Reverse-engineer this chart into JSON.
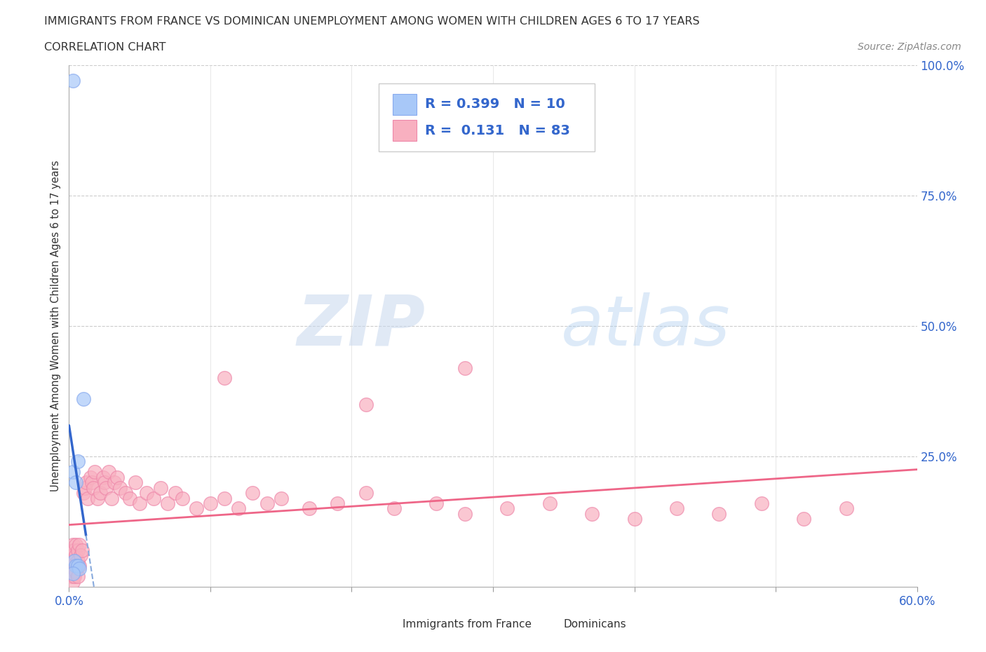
{
  "title": "IMMIGRANTS FROM FRANCE VS DOMINICAN UNEMPLOYMENT AMONG WOMEN WITH CHILDREN AGES 6 TO 17 YEARS",
  "subtitle": "CORRELATION CHART",
  "source": "Source: ZipAtlas.com",
  "ylabel": "Unemployment Among Women with Children Ages 6 to 17 years",
  "xlim": [
    0.0,
    0.6
  ],
  "ylim": [
    0.0,
    1.0
  ],
  "france_color": "#a8c8f8",
  "france_edge_color": "#88aaee",
  "dominican_color": "#f8b0c0",
  "dominican_edge_color": "#ee88aa",
  "france_line_color": "#3366cc",
  "france_dash_color": "#88aadd",
  "dominican_line_color": "#ee6688",
  "france_R": 0.399,
  "france_N": 10,
  "dominican_R": 0.131,
  "dominican_N": 83,
  "watermark_zip": "ZIP",
  "watermark_atlas": "atlas",
  "background_color": "#ffffff",
  "france_points_x": [
    0.003,
    0.003,
    0.004,
    0.005,
    0.005,
    0.006,
    0.006,
    0.007,
    0.01,
    0.003
  ],
  "france_points_y": [
    0.97,
    0.22,
    0.05,
    0.2,
    0.04,
    0.24,
    0.04,
    0.035,
    0.36,
    0.025
  ],
  "dominican_points_x": [
    0.001,
    0.001,
    0.001,
    0.002,
    0.002,
    0.002,
    0.002,
    0.002,
    0.003,
    0.003,
    0.003,
    0.003,
    0.003,
    0.003,
    0.003,
    0.003,
    0.004,
    0.004,
    0.004,
    0.004,
    0.005,
    0.005,
    0.005,
    0.006,
    0.006,
    0.006,
    0.007,
    0.007,
    0.008,
    0.009,
    0.01,
    0.011,
    0.012,
    0.013,
    0.015,
    0.016,
    0.017,
    0.018,
    0.02,
    0.022,
    0.024,
    0.025,
    0.026,
    0.028,
    0.03,
    0.032,
    0.034,
    0.036,
    0.04,
    0.043,
    0.047,
    0.05,
    0.055,
    0.06,
    0.065,
    0.07,
    0.075,
    0.08,
    0.09,
    0.1,
    0.11,
    0.12,
    0.13,
    0.14,
    0.15,
    0.17,
    0.19,
    0.21,
    0.23,
    0.26,
    0.28,
    0.31,
    0.34,
    0.37,
    0.4,
    0.43,
    0.46,
    0.49,
    0.52,
    0.55,
    0.28,
    0.11,
    0.21
  ],
  "dominican_points_y": [
    0.05,
    0.04,
    0.03,
    0.06,
    0.05,
    0.04,
    0.03,
    0.02,
    0.08,
    0.07,
    0.06,
    0.05,
    0.04,
    0.03,
    0.02,
    0.01,
    0.07,
    0.05,
    0.03,
    0.02,
    0.08,
    0.06,
    0.03,
    0.07,
    0.05,
    0.02,
    0.08,
    0.04,
    0.06,
    0.07,
    0.18,
    0.19,
    0.2,
    0.17,
    0.21,
    0.2,
    0.19,
    0.22,
    0.17,
    0.18,
    0.21,
    0.2,
    0.19,
    0.22,
    0.17,
    0.2,
    0.21,
    0.19,
    0.18,
    0.17,
    0.2,
    0.16,
    0.18,
    0.17,
    0.19,
    0.16,
    0.18,
    0.17,
    0.15,
    0.16,
    0.17,
    0.15,
    0.18,
    0.16,
    0.17,
    0.15,
    0.16,
    0.18,
    0.15,
    0.16,
    0.14,
    0.15,
    0.16,
    0.14,
    0.13,
    0.15,
    0.14,
    0.16,
    0.13,
    0.15,
    0.42,
    0.4,
    0.35
  ]
}
